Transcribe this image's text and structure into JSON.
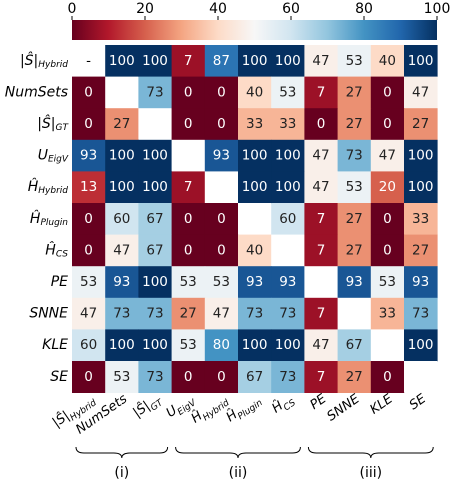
{
  "chart_data": {
    "type": "heatmap",
    "title": "",
    "colormap": {
      "name": "RdBu",
      "low_color": "#67001f",
      "mid_color": "#f7f7f7",
      "high_color": "#053061",
      "vmin": 0,
      "vmax": 100
    },
    "colorbar": {
      "placement": "top",
      "ticks": [
        "0",
        "20",
        "40",
        "60",
        "80",
        "100"
      ]
    },
    "rows": [
      {
        "main": "|Ŝ|",
        "sub": "Hybrid"
      },
      {
        "main": "NumSets",
        "sub": ""
      },
      {
        "main": "|Ŝ|",
        "sub": "GT"
      },
      {
        "main": "U",
        "sub": "EigV"
      },
      {
        "main": "Ĥ",
        "sub": "Hybrid"
      },
      {
        "main": "Ĥ",
        "sub": "Plugin"
      },
      {
        "main": "Ĥ",
        "sub": "CS"
      },
      {
        "main": "PE",
        "sub": ""
      },
      {
        "main": "SNNE",
        "sub": ""
      },
      {
        "main": "KLE",
        "sub": ""
      },
      {
        "main": "SE",
        "sub": ""
      }
    ],
    "columns": [
      {
        "main": "|Ŝ|",
        "sub": "Hybrid"
      },
      {
        "main": "NumSets",
        "sub": ""
      },
      {
        "main": "|Ŝ|",
        "sub": "GT"
      },
      {
        "main": "U",
        "sub": "EigV"
      },
      {
        "main": "Ĥ",
        "sub": "Hybrid"
      },
      {
        "main": "Ĥ",
        "sub": "Plugin"
      },
      {
        "main": "Ĥ",
        "sub": "CS"
      },
      {
        "main": "PE",
        "sub": ""
      },
      {
        "main": "SNNE",
        "sub": ""
      },
      {
        "main": "KLE",
        "sub": ""
      },
      {
        "main": "SE",
        "sub": ""
      }
    ],
    "values": [
      [
        null,
        100,
        100,
        7,
        87,
        100,
        100,
        47,
        53,
        40,
        100
      ],
      [
        0,
        null,
        73,
        0,
        0,
        40,
        53,
        7,
        27,
        0,
        47
      ],
      [
        0,
        27,
        null,
        0,
        0,
        33,
        33,
        0,
        27,
        0,
        27
      ],
      [
        93,
        100,
        100,
        null,
        93,
        100,
        100,
        47,
        73,
        47,
        100
      ],
      [
        13,
        100,
        100,
        7,
        null,
        100,
        100,
        47,
        53,
        20,
        100
      ],
      [
        0,
        60,
        67,
        0,
        0,
        null,
        60,
        7,
        27,
        0,
        33
      ],
      [
        0,
        47,
        67,
        0,
        0,
        40,
        null,
        7,
        27,
        0,
        27
      ],
      [
        53,
        93,
        100,
        53,
        53,
        93,
        93,
        null,
        93,
        53,
        93
      ],
      [
        47,
        73,
        73,
        27,
        47,
        73,
        73,
        7,
        null,
        33,
        73
      ],
      [
        60,
        100,
        100,
        53,
        80,
        100,
        100,
        47,
        67,
        null,
        100
      ],
      [
        0,
        53,
        73,
        0,
        0,
        67,
        73,
        7,
        27,
        0,
        null
      ]
    ],
    "diagonal_marker": "-",
    "column_groups": [
      {
        "label": "(i)",
        "from": 0,
        "to": 2
      },
      {
        "label": "(ii)",
        "from": 3,
        "to": 6
      },
      {
        "label": "(iii)",
        "from": 7,
        "to": 10
      }
    ]
  }
}
